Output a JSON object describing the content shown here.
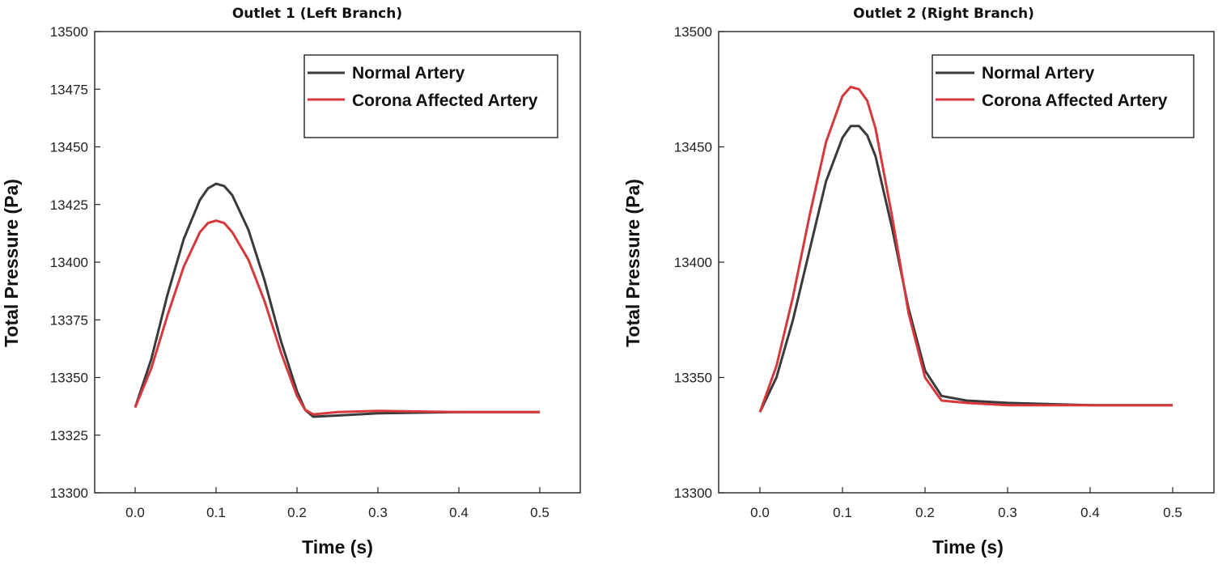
{
  "chart_data": [
    {
      "type": "line",
      "title": "Outlet 1 (Left Branch)",
      "xlabel": "Time (s)",
      "ylabel": "Total Pressure (Pa)",
      "xlim": [
        -0.05,
        0.55
      ],
      "ylim": [
        13300,
        13500
      ],
      "xticks": [
        0.0,
        0.1,
        0.2,
        0.3,
        0.4,
        0.5
      ],
      "xtick_labels": [
        "0.0",
        "0.1",
        "0.2",
        "0.3",
        "0.4",
        "0.5"
      ],
      "yticks": [
        13300,
        13325,
        13350,
        13375,
        13400,
        13425,
        13450,
        13475,
        13500
      ],
      "ytick_labels": [
        "13300",
        "13325",
        "13350",
        "13375",
        "13400",
        "13425",
        "13450",
        "13475",
        "13500"
      ],
      "legend_position": "top-right",
      "series": [
        {
          "name": "Normal Artery",
          "color": "#3a3a3a",
          "x": [
            0.0,
            0.02,
            0.04,
            0.06,
            0.08,
            0.09,
            0.1,
            0.11,
            0.12,
            0.14,
            0.16,
            0.18,
            0.2,
            0.21,
            0.22,
            0.25,
            0.3,
            0.4,
            0.5
          ],
          "y": [
            13337,
            13358,
            13386,
            13410,
            13427,
            13432,
            13434,
            13433,
            13429,
            13414,
            13392,
            13366,
            13344,
            13336,
            13333,
            13333.5,
            13334.5,
            13335,
            13335
          ]
        },
        {
          "name": "Corona Affected Artery",
          "color": "#d6383c",
          "x": [
            0.0,
            0.02,
            0.04,
            0.06,
            0.08,
            0.09,
            0.1,
            0.11,
            0.12,
            0.14,
            0.16,
            0.18,
            0.2,
            0.21,
            0.22,
            0.25,
            0.3,
            0.4,
            0.5
          ],
          "y": [
            13337,
            13354,
            13377,
            13398,
            13413,
            13417,
            13418,
            13417,
            13413,
            13401,
            13383,
            13361,
            13342,
            13336,
            13334,
            13335,
            13335.5,
            13335,
            13335
          ]
        }
      ]
    },
    {
      "type": "line",
      "title": "Outlet 2 (Right Branch)",
      "xlabel": "Time (s)",
      "ylabel": "Total Pressure (Pa)",
      "xlim": [
        -0.05,
        0.55
      ],
      "ylim": [
        13300,
        13500
      ],
      "xticks": [
        0.0,
        0.1,
        0.2,
        0.3,
        0.4,
        0.5
      ],
      "xtick_labels": [
        "0.0",
        "0.1",
        "0.2",
        "0.3",
        "0.4",
        "0.5"
      ],
      "yticks": [
        13300,
        13350,
        13400,
        13450,
        13500
      ],
      "ytick_labels": [
        "13300",
        "13350",
        "13400",
        "13450",
        "13500"
      ],
      "legend_position": "top-right",
      "series": [
        {
          "name": "Normal Artery",
          "color": "#3a3a3a",
          "x": [
            0.0,
            0.02,
            0.04,
            0.06,
            0.08,
            0.1,
            0.11,
            0.12,
            0.13,
            0.14,
            0.16,
            0.18,
            0.2,
            0.22,
            0.25,
            0.3,
            0.4,
            0.5
          ],
          "y": [
            13335,
            13350,
            13375,
            13405,
            13435,
            13454,
            13459,
            13459,
            13455,
            13446,
            13415,
            13380,
            13353,
            13342,
            13340,
            13339,
            13338,
            13338
          ]
        },
        {
          "name": "Corona Affected Artery",
          "color": "#d6383c",
          "x": [
            0.0,
            0.02,
            0.04,
            0.06,
            0.08,
            0.1,
            0.11,
            0.12,
            0.13,
            0.14,
            0.16,
            0.18,
            0.2,
            0.22,
            0.25,
            0.3,
            0.4,
            0.5
          ],
          "y": [
            13335,
            13355,
            13385,
            13420,
            13452,
            13472,
            13476,
            13475,
            13470,
            13458,
            13420,
            13378,
            13350,
            13340,
            13339,
            13338,
            13338,
            13338
          ]
        }
      ]
    }
  ]
}
